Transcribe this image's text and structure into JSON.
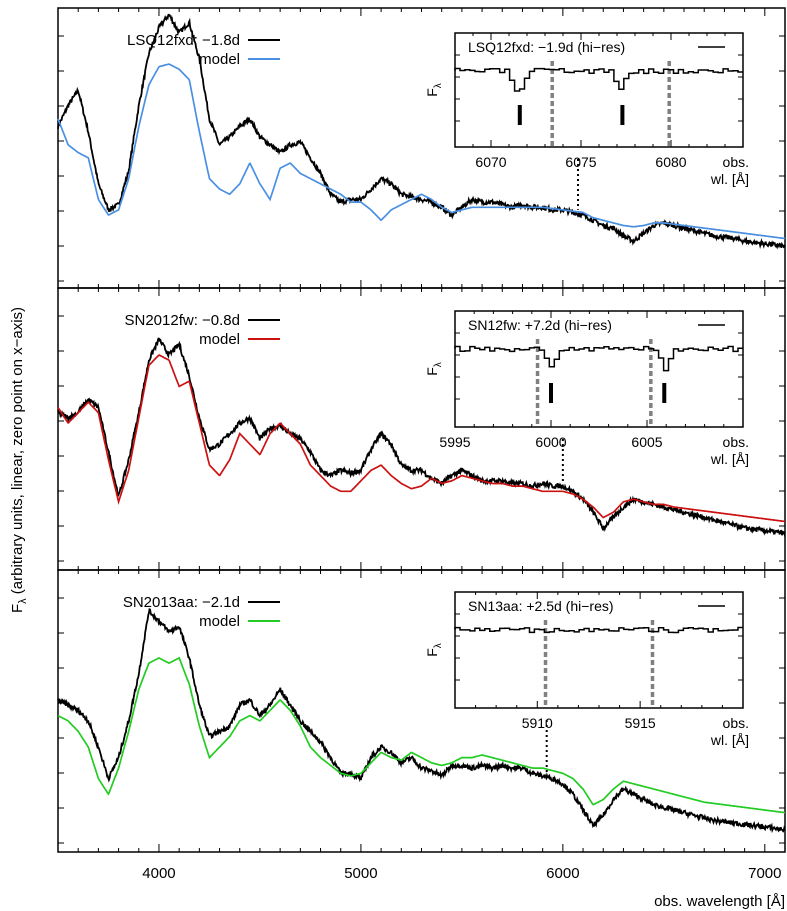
{
  "figure": {
    "ylabel_main": "F",
    "ylabel_sub": "λ",
    "ylabel_rest": " (arbitrary units, linear, zero point on x−axis)",
    "xlabel": "obs. wavelength [Å]",
    "xticks": [
      4000,
      5000,
      6000,
      7000
    ],
    "xlim": [
      3500,
      7100
    ]
  },
  "colors": {
    "observed": "#000000",
    "grey_marker": "#808080"
  },
  "chart_data": [
    {
      "type": "line",
      "panel": 1,
      "xlim": [
        3500,
        7100
      ],
      "legend": {
        "placement": "top-left",
        "entries": [
          "LSQ12fxd: −1.8d",
          "model"
        ]
      },
      "model_color": "#4a90e2",
      "marker_wavelength": 6075,
      "series": [
        {
          "name": "LSQ12fxd: −1.8d",
          "x": [
            3500,
            3550,
            3600,
            3650,
            3700,
            3750,
            3800,
            3850,
            3900,
            3950,
            4000,
            4050,
            4100,
            4150,
            4200,
            4250,
            4300,
            4350,
            4400,
            4450,
            4500,
            4550,
            4600,
            4650,
            4700,
            4750,
            4800,
            4850,
            4900,
            4950,
            5000,
            5050,
            5100,
            5150,
            5200,
            5250,
            5300,
            5350,
            5400,
            5450,
            5500,
            5550,
            5600,
            5650,
            5700,
            5750,
            5800,
            5850,
            5900,
            5950,
            6000,
            6050,
            6100,
            6150,
            6200,
            6250,
            6300,
            6350,
            6400,
            6450,
            6500,
            6550,
            6600,
            6650,
            6700,
            6750,
            6800,
            6850,
            6900,
            6950,
            7000,
            7050,
            7100
          ],
          "y": [
            0.62,
            0.7,
            0.76,
            0.6,
            0.4,
            0.3,
            0.32,
            0.45,
            0.7,
            0.9,
            1.0,
            1.05,
            0.98,
            1.02,
            0.88,
            0.65,
            0.55,
            0.58,
            0.62,
            0.65,
            0.58,
            0.55,
            0.52,
            0.55,
            0.56,
            0.5,
            0.44,
            0.36,
            0.33,
            0.34,
            0.34,
            0.38,
            0.42,
            0.4,
            0.36,
            0.35,
            0.34,
            0.33,
            0.31,
            0.28,
            0.31,
            0.34,
            0.33,
            0.33,
            0.32,
            0.31,
            0.32,
            0.31,
            0.31,
            0.3,
            0.3,
            0.29,
            0.28,
            0.26,
            0.24,
            0.23,
            0.2,
            0.18,
            0.21,
            0.24,
            0.25,
            0.24,
            0.23,
            0.22,
            0.21,
            0.2,
            0.195,
            0.19,
            0.18,
            0.175,
            0.17,
            0.165,
            0.16
          ]
        },
        {
          "name": "model",
          "x": [
            3500,
            3550,
            3600,
            3650,
            3700,
            3750,
            3800,
            3850,
            3900,
            3950,
            4000,
            4050,
            4100,
            4150,
            4200,
            4250,
            4300,
            4350,
            4400,
            4450,
            4500,
            4550,
            4600,
            4650,
            4700,
            4750,
            4800,
            4850,
            4900,
            4950,
            5000,
            5050,
            5100,
            5150,
            5200,
            5250,
            5300,
            5350,
            5400,
            5450,
            5500,
            5550,
            5600,
            5650,
            5700,
            5750,
            5800,
            5850,
            5900,
            5950,
            6000,
            6050,
            6100,
            6150,
            6200,
            6250,
            6300,
            6350,
            6400,
            6450,
            6500,
            6550,
            6600,
            6650,
            6700,
            6750,
            6800,
            6850,
            6900,
            6950,
            7000,
            7050,
            7100
          ],
          "y": [
            0.65,
            0.55,
            0.52,
            0.5,
            0.34,
            0.28,
            0.3,
            0.42,
            0.62,
            0.78,
            0.85,
            0.86,
            0.84,
            0.8,
            0.6,
            0.42,
            0.38,
            0.36,
            0.4,
            0.48,
            0.4,
            0.34,
            0.46,
            0.48,
            0.44,
            0.42,
            0.4,
            0.38,
            0.36,
            0.33,
            0.33,
            0.3,
            0.26,
            0.3,
            0.32,
            0.34,
            0.36,
            0.34,
            0.31,
            0.29,
            0.3,
            0.31,
            0.31,
            0.31,
            0.31,
            0.31,
            0.31,
            0.31,
            0.31,
            0.305,
            0.3,
            0.295,
            0.29,
            0.27,
            0.26,
            0.25,
            0.24,
            0.235,
            0.24,
            0.25,
            0.25,
            0.245,
            0.24,
            0.235,
            0.23,
            0.225,
            0.22,
            0.215,
            0.21,
            0.205,
            0.2,
            0.195,
            0.19
          ]
        }
      ],
      "inset": {
        "label": "LSQ12fxd: −1.9d (hi−res)",
        "ylabel_main": "F",
        "ylabel_sub": "λ",
        "xtick_values": [
          6070,
          6075,
          6080
        ],
        "xaxis_title_lines": [
          "obs.",
          "wl. [Å]"
        ],
        "xlim": [
          6068,
          6084
        ],
        "grey_lines": [
          6073.4,
          6079.9
        ],
        "ticks": [
          6071.6,
          6077.3
        ],
        "absorptions": [
          6071.6,
          6077.3
        ]
      }
    },
    {
      "type": "line",
      "panel": 2,
      "xlim": [
        3500,
        7100
      ],
      "legend": {
        "placement": "top-left",
        "entries": [
          "SN2012fw: −0.8d",
          "model"
        ]
      },
      "model_color": "#cc1111",
      "marker_wavelength": 6000,
      "series": [
        {
          "name": "SN2012fw: −0.8d",
          "x": [
            3500,
            3550,
            3600,
            3650,
            3700,
            3750,
            3800,
            3850,
            3900,
            3950,
            4000,
            4050,
            4100,
            4150,
            4200,
            4250,
            4300,
            4350,
            4400,
            4450,
            4500,
            4550,
            4600,
            4650,
            4700,
            4750,
            4800,
            4850,
            4900,
            4950,
            5000,
            5050,
            5100,
            5150,
            5200,
            5250,
            5300,
            5350,
            5400,
            5450,
            5500,
            5550,
            5600,
            5650,
            5700,
            5750,
            5800,
            5850,
            5900,
            5950,
            6000,
            6050,
            6100,
            6150,
            6200,
            6250,
            6300,
            6350,
            6400,
            6450,
            6500,
            6550,
            6600,
            6650,
            6700,
            6750,
            6800,
            6850,
            6900,
            6950,
            7000,
            7050,
            7100
          ],
          "y": [
            0.6,
            0.58,
            0.6,
            0.65,
            0.62,
            0.45,
            0.28,
            0.42,
            0.6,
            0.8,
            0.88,
            0.82,
            0.86,
            0.74,
            0.58,
            0.46,
            0.48,
            0.52,
            0.56,
            0.58,
            0.5,
            0.54,
            0.55,
            0.52,
            0.5,
            0.45,
            0.38,
            0.36,
            0.38,
            0.37,
            0.38,
            0.46,
            0.52,
            0.48,
            0.4,
            0.38,
            0.38,
            0.35,
            0.33,
            0.36,
            0.38,
            0.36,
            0.34,
            0.34,
            0.34,
            0.33,
            0.33,
            0.32,
            0.33,
            0.32,
            0.32,
            0.3,
            0.27,
            0.22,
            0.16,
            0.2,
            0.24,
            0.27,
            0.26,
            0.25,
            0.24,
            0.23,
            0.22,
            0.21,
            0.2,
            0.19,
            0.18,
            0.17,
            0.16,
            0.155,
            0.15,
            0.145,
            0.14
          ]
        },
        {
          "name": "model",
          "x": [
            3500,
            3550,
            3600,
            3650,
            3700,
            3750,
            3800,
            3850,
            3900,
            3950,
            4000,
            4050,
            4100,
            4150,
            4200,
            4250,
            4300,
            4350,
            4400,
            4450,
            4500,
            4550,
            4600,
            4650,
            4700,
            4750,
            4800,
            4850,
            4900,
            4950,
            5000,
            5050,
            5100,
            5150,
            5200,
            5250,
            5300,
            5350,
            5400,
            5450,
            5500,
            5550,
            5600,
            5650,
            5700,
            5750,
            5800,
            5850,
            5900,
            5950,
            6000,
            6050,
            6100,
            6150,
            6200,
            6250,
            6300,
            6350,
            6400,
            6450,
            6500,
            6550,
            6600,
            6650,
            6700,
            6750,
            6800,
            6850,
            6900,
            6950,
            7000,
            7050,
            7100
          ],
          "y": [
            0.62,
            0.56,
            0.6,
            0.64,
            0.6,
            0.42,
            0.26,
            0.38,
            0.58,
            0.78,
            0.82,
            0.8,
            0.7,
            0.72,
            0.56,
            0.4,
            0.36,
            0.42,
            0.52,
            0.48,
            0.44,
            0.52,
            0.56,
            0.52,
            0.48,
            0.4,
            0.36,
            0.32,
            0.3,
            0.3,
            0.34,
            0.38,
            0.4,
            0.36,
            0.33,
            0.31,
            0.32,
            0.35,
            0.33,
            0.34,
            0.36,
            0.35,
            0.34,
            0.33,
            0.33,
            0.32,
            0.32,
            0.31,
            0.3,
            0.3,
            0.3,
            0.29,
            0.27,
            0.24,
            0.2,
            0.22,
            0.26,
            0.27,
            0.26,
            0.25,
            0.25,
            0.24,
            0.235,
            0.23,
            0.225,
            0.22,
            0.215,
            0.21,
            0.205,
            0.2,
            0.195,
            0.19,
            0.185
          ]
        }
      ],
      "inset": {
        "label": "SN12fw: +7.2d (hi−res)",
        "ylabel_main": "F",
        "ylabel_sub": "λ",
        "xtick_values": [
          5995,
          6000,
          6005
        ],
        "xaxis_title_lines": [
          "obs.",
          "wl. [Å]"
        ],
        "xlim": [
          5995,
          6010
        ],
        "grey_lines": [
          5999.3,
          6005.2
        ],
        "ticks": [
          6000.0,
          6005.9
        ],
        "absorptions": [
          6000.0,
          6005.9
        ]
      }
    },
    {
      "type": "line",
      "panel": 3,
      "xlim": [
        3500,
        7100
      ],
      "legend": {
        "placement": "top-left",
        "entries": [
          "SN2013aa: −2.1d",
          "model"
        ]
      },
      "model_color": "#22cc22",
      "marker_wavelength": 5920,
      "series": [
        {
          "name": "SN2013aa: −2.1d",
          "x": [
            3500,
            3550,
            3600,
            3650,
            3700,
            3750,
            3800,
            3850,
            3900,
            3950,
            4000,
            4050,
            4100,
            4150,
            4200,
            4250,
            4300,
            4350,
            4400,
            4450,
            4500,
            4550,
            4600,
            4650,
            4700,
            4750,
            4800,
            4850,
            4900,
            4950,
            5000,
            5050,
            5100,
            5150,
            5200,
            5250,
            5300,
            5350,
            5400,
            5450,
            5500,
            5550,
            5600,
            5650,
            5700,
            5750,
            5800,
            5850,
            5900,
            5950,
            6000,
            6050,
            6100,
            6150,
            6200,
            6250,
            6300,
            6350,
            6400,
            6450,
            6500,
            6550,
            6600,
            6650,
            6700,
            6750,
            6800,
            6850,
            6900,
            6950,
            7000,
            7050,
            7100
          ],
          "y": [
            0.58,
            0.56,
            0.54,
            0.5,
            0.4,
            0.28,
            0.36,
            0.5,
            0.68,
            0.92,
            0.88,
            0.84,
            0.86,
            0.74,
            0.56,
            0.44,
            0.46,
            0.48,
            0.56,
            0.58,
            0.52,
            0.56,
            0.62,
            0.56,
            0.5,
            0.46,
            0.42,
            0.36,
            0.3,
            0.3,
            0.28,
            0.36,
            0.4,
            0.38,
            0.34,
            0.36,
            0.32,
            0.31,
            0.29,
            0.33,
            0.33,
            0.32,
            0.33,
            0.32,
            0.33,
            0.32,
            0.32,
            0.3,
            0.29,
            0.28,
            0.26,
            0.22,
            0.16,
            0.1,
            0.14,
            0.2,
            0.24,
            0.22,
            0.2,
            0.18,
            0.17,
            0.16,
            0.15,
            0.14,
            0.13,
            0.12,
            0.115,
            0.11,
            0.105,
            0.1,
            0.095,
            0.09,
            0.085
          ]
        },
        {
          "name": "model",
          "x": [
            3500,
            3550,
            3600,
            3650,
            3700,
            3750,
            3800,
            3850,
            3900,
            3950,
            4000,
            4050,
            4100,
            4150,
            4200,
            4250,
            4300,
            4350,
            4400,
            4450,
            4500,
            4550,
            4600,
            4650,
            4700,
            4750,
            4800,
            4850,
            4900,
            4950,
            5000,
            5050,
            5100,
            5150,
            5200,
            5250,
            5300,
            5350,
            5400,
            5450,
            5500,
            5550,
            5600,
            5650,
            5700,
            5750,
            5800,
            5850,
            5900,
            5950,
            6000,
            6050,
            6100,
            6150,
            6200,
            6250,
            6300,
            6350,
            6400,
            6450,
            6500,
            6550,
            6600,
            6650,
            6700,
            6750,
            6800,
            6850,
            6900,
            6950,
            7000,
            7050,
            7100
          ],
          "y": [
            0.52,
            0.5,
            0.46,
            0.4,
            0.28,
            0.22,
            0.32,
            0.46,
            0.62,
            0.72,
            0.74,
            0.72,
            0.74,
            0.64,
            0.48,
            0.36,
            0.4,
            0.44,
            0.5,
            0.52,
            0.5,
            0.54,
            0.58,
            0.54,
            0.48,
            0.4,
            0.36,
            0.33,
            0.3,
            0.29,
            0.3,
            0.34,
            0.38,
            0.36,
            0.35,
            0.38,
            0.36,
            0.34,
            0.33,
            0.34,
            0.36,
            0.36,
            0.37,
            0.36,
            0.35,
            0.34,
            0.33,
            0.32,
            0.32,
            0.31,
            0.3,
            0.28,
            0.24,
            0.18,
            0.2,
            0.24,
            0.27,
            0.26,
            0.25,
            0.24,
            0.23,
            0.22,
            0.21,
            0.2,
            0.19,
            0.185,
            0.18,
            0.175,
            0.17,
            0.165,
            0.16,
            0.155,
            0.15
          ]
        }
      ],
      "inset": {
        "label": "SN13aa: +2.5d (hi−res)",
        "ylabel_main": "F",
        "ylabel_sub": "λ",
        "xtick_values": [
          5910,
          5915
        ],
        "xaxis_title_lines": [
          "obs.",
          "wl. [Å]"
        ],
        "xlim": [
          5906,
          5920
        ],
        "grey_lines": [
          5910.4,
          5915.6
        ],
        "ticks": [],
        "absorptions": []
      }
    }
  ]
}
